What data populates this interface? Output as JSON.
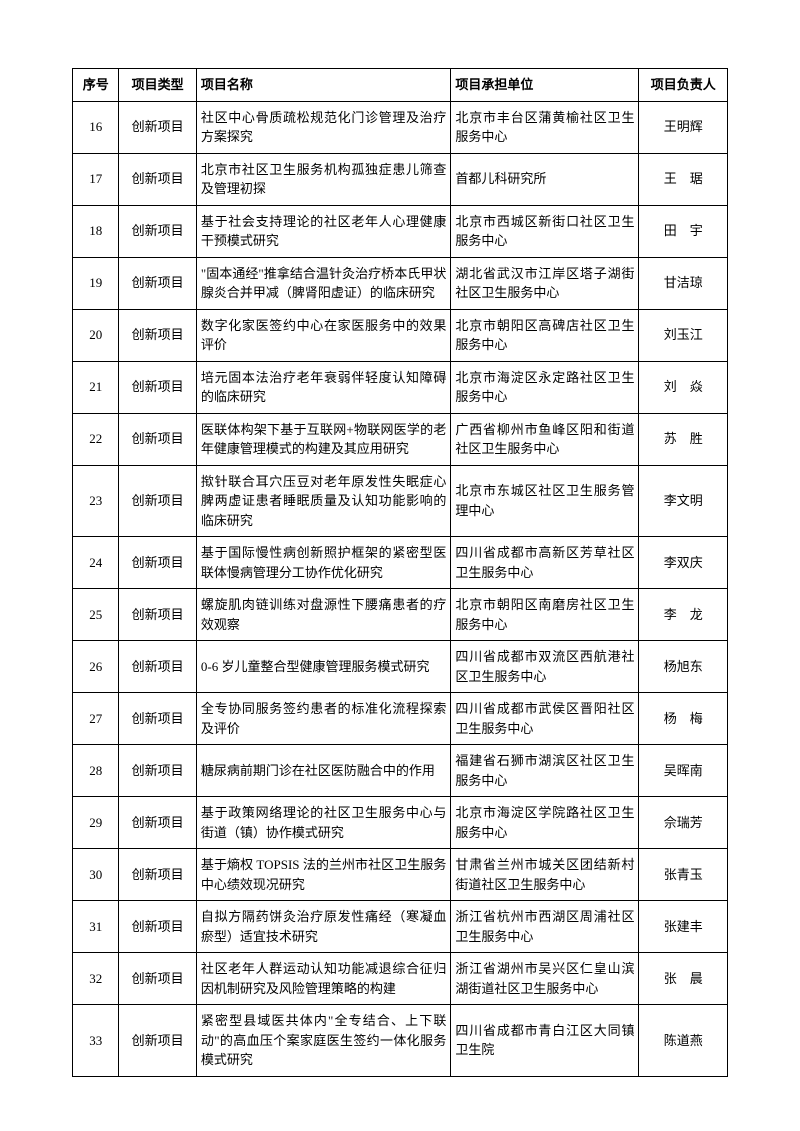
{
  "table": {
    "headers": {
      "seq": "序号",
      "type": "项目类型",
      "name": "项目名称",
      "org": "项目承担单位",
      "person": "项目负责人"
    },
    "rows": [
      {
        "seq": "16",
        "type": "创新项目",
        "name": "社区中心骨质疏松规范化门诊管理及治疗方案探究",
        "org": "北京市丰台区蒲黄榆社区卫生服务中心",
        "person": "王明辉"
      },
      {
        "seq": "17",
        "type": "创新项目",
        "name": "北京市社区卫生服务机构孤独症患儿筛查及管理初探",
        "org": "首都儿科研究所",
        "person": "王　琚"
      },
      {
        "seq": "18",
        "type": "创新项目",
        "name": "基于社会支持理论的社区老年人心理健康干预模式研究",
        "org": "北京市西城区新街口社区卫生服务中心",
        "person": "田　宇"
      },
      {
        "seq": "19",
        "type": "创新项目",
        "name": "\"固本通经\"推拿结合温针灸治疗桥本氏甲状腺炎合并甲减（脾肾阳虚证）的临床研究",
        "org": "湖北省武汉市江岸区塔子湖街社区卫生服务中心",
        "person": "甘洁琼"
      },
      {
        "seq": "20",
        "type": "创新项目",
        "name": "数字化家医签约中心在家医服务中的效果评价",
        "org": "北京市朝阳区高碑店社区卫生服务中心",
        "person": "刘玉江"
      },
      {
        "seq": "21",
        "type": "创新项目",
        "name": "培元固本法治疗老年衰弱伴轻度认知障碍的临床研究",
        "org": "北京市海淀区永定路社区卫生服务中心",
        "person": "刘　焱"
      },
      {
        "seq": "22",
        "type": "创新项目",
        "name": "医联体构架下基于互联网+物联网医学的老年健康管理模式的构建及其应用研究",
        "org": "广西省柳州市鱼峰区阳和街道社区卫生服务中心",
        "person": "苏　胜"
      },
      {
        "seq": "23",
        "type": "创新项目",
        "name": "揿针联合耳穴压豆对老年原发性失眠症心脾两虚证患者睡眠质量及认知功能影响的临床研究",
        "org": "北京市东城区社区卫生服务管理中心",
        "person": "李文明"
      },
      {
        "seq": "24",
        "type": "创新项目",
        "name": "基于国际慢性病创新照护框架的紧密型医联体慢病管理分工协作优化研究",
        "org": "四川省成都市高新区芳草社区卫生服务中心",
        "person": "李双庆"
      },
      {
        "seq": "25",
        "type": "创新项目",
        "name": "螺旋肌肉链训练对盘源性下腰痛患者的疗效观察",
        "org": "北京市朝阳区南磨房社区卫生服务中心",
        "person": "李　龙"
      },
      {
        "seq": "26",
        "type": "创新项目",
        "name": "0-6 岁儿童整合型健康管理服务模式研究",
        "org": "四川省成都市双流区西航港社区卫生服务中心",
        "person": "杨旭东"
      },
      {
        "seq": "27",
        "type": "创新项目",
        "name": "全专协同服务签约患者的标准化流程探索及评价",
        "org": "四川省成都市武侯区晋阳社区卫生服务中心",
        "person": "杨　梅"
      },
      {
        "seq": "28",
        "type": "创新项目",
        "name": "糖尿病前期门诊在社区医防融合中的作用",
        "org": "福建省石狮市湖滨区社区卫生服务中心",
        "person": "吴晖南"
      },
      {
        "seq": "29",
        "type": "创新项目",
        "name": "基于政策网络理论的社区卫生服务中心与街道（镇）协作模式研究",
        "org": "北京市海淀区学院路社区卫生服务中心",
        "person": "佘瑞芳"
      },
      {
        "seq": "30",
        "type": "创新项目",
        "name": "基于熵权 TOPSIS 法的兰州市社区卫生服务中心绩效现况研究",
        "org": "甘肃省兰州市城关区团结新村街道社区卫生服务中心",
        "person": "张青玉"
      },
      {
        "seq": "31",
        "type": "创新项目",
        "name": "自拟方隔药饼灸治疗原发性痛经（寒凝血瘀型）适宜技术研究",
        "org": "浙江省杭州市西湖区周浦社区卫生服务中心",
        "person": "张建丰"
      },
      {
        "seq": "32",
        "type": "创新项目",
        "name": "社区老年人群运动认知功能减退综合征归因机制研究及风险管理策略的构建",
        "org": "浙江省湖州市吴兴区仁皇山滨湖街道社区卫生服务中心",
        "person": "张　晨"
      },
      {
        "seq": "33",
        "type": "创新项目",
        "name": "紧密型县域医共体内\"全专结合、上下联动\"的高血压个案家庭医生签约一体化服务模式研究",
        "org": "四川省成都市青白江区大同镇卫生院",
        "person": "陈道燕"
      }
    ]
  }
}
